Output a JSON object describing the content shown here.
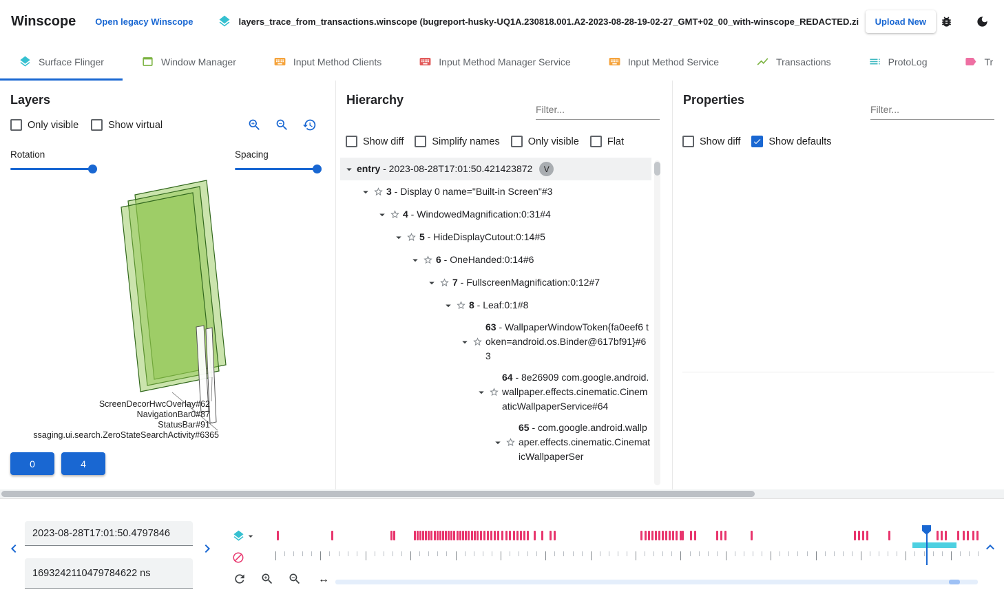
{
  "colors": {
    "accent": "#1967d2",
    "tick_color": "#e8356d",
    "selection_color": "#4dd0e1",
    "teal_icon": "#35c0d0"
  },
  "header": {
    "app_title": "Winscope",
    "legacy_link": "Open legacy Winscope",
    "trace_file": "layers_trace_from_transactions.winscope (bugreport-husky-UQ1A.230818.001.A2-2023-08-28-19-02-27_GMT+02_00_with-winscope_REDACTED.zip)",
    "upload_button": "Upload New"
  },
  "tabs": [
    {
      "label": "Surface Flinger",
      "icon": "layers-icon",
      "glyph": "layers",
      "color": "#35c0d0",
      "active": true
    },
    {
      "label": "Window Manager",
      "icon": "window-icon",
      "glyph": "window",
      "color": "#7cb342",
      "active": false
    },
    {
      "label": "Input Method Clients",
      "icon": "keyboard-icon",
      "glyph": "keyboard",
      "color": "#f5a33b",
      "active": false
    },
    {
      "label": "Input Method Manager Service",
      "icon": "keyboard-icon",
      "glyph": "keyboard",
      "color": "#e25a5a",
      "active": false
    },
    {
      "label": "Input Method Service",
      "icon": "keyboard-icon",
      "glyph": "keyboard",
      "color": "#f5a33b",
      "active": false
    },
    {
      "label": "Transactions",
      "icon": "chart-icon",
      "glyph": "chart",
      "color": "#7cb342",
      "active": false
    },
    {
      "label": "ProtoLog",
      "icon": "list-icon",
      "glyph": "list",
      "color": "#3eb8c0",
      "active": false
    },
    {
      "label": "Tr",
      "icon": "tag-icon",
      "glyph": "tag",
      "color": "#ee6fa2",
      "active": false
    }
  ],
  "layers": {
    "title": "Layers",
    "toggles": [
      {
        "label": "Only visible",
        "checked": false
      },
      {
        "label": "Show virtual",
        "checked": false
      }
    ],
    "rotation_label": "Rotation",
    "spacing_label": "Spacing",
    "labels": [
      "ScreenDecorHwcOverlay#62",
      "NavigationBar0#87",
      "StatusBar#91",
      "ssaging.ui.search.ZeroStateSearchActivity#6365"
    ],
    "display_buttons": [
      "0",
      "4"
    ]
  },
  "hierarchy": {
    "title": "Hierarchy",
    "filter_placeholder": "Filter...",
    "toggles": [
      {
        "label": "Show diff",
        "checked": false
      },
      {
        "label": "Simplify names",
        "checked": false
      },
      {
        "label": "Only visible",
        "checked": false
      },
      {
        "label": "Flat",
        "checked": false
      }
    ],
    "tree": [
      {
        "depth": 0,
        "id": "entry",
        "text": " - 2023-08-28T17:01:50.421423872",
        "star": false,
        "badge": "V",
        "selected": true
      },
      {
        "depth": 1,
        "id": "3",
        "text": " - Display 0 name=\"Built-in Screen\"#3",
        "star": true
      },
      {
        "depth": 2,
        "id": "4",
        "text": " - WindowedMagnification:0:31#4",
        "star": true
      },
      {
        "depth": 3,
        "id": "5",
        "text": " - HideDisplayCutout:0:14#5",
        "star": true
      },
      {
        "depth": 4,
        "id": "6",
        "text": " - OneHanded:0:14#6",
        "star": true
      },
      {
        "depth": 5,
        "id": "7",
        "text": " - FullscreenMagnification:0:12#7",
        "star": true
      },
      {
        "depth": 6,
        "id": "8",
        "text": " - Leaf:0:1#8",
        "star": true
      },
      {
        "depth": 7,
        "id": "63",
        "text": " - WallpaperWindowToken{fa0eef6 token=android.os.Binder@617bf91}#63",
        "star": true
      },
      {
        "depth": 8,
        "id": "64",
        "text": " - 8e26909 com.google.android.wallpaper.effects.cinematic.CinematicWallpaperService#64",
        "star": true
      },
      {
        "depth": 9,
        "id": "65",
        "text": " - com.google.android.wallpaper.effects.cinematic.CinematicWallpaperSer",
        "star": true
      }
    ]
  },
  "properties": {
    "title": "Properties",
    "filter_placeholder": "Filter...",
    "toggles": [
      {
        "label": "Show diff",
        "checked": false
      },
      {
        "label": "Show defaults",
        "checked": true
      }
    ]
  },
  "timeline": {
    "ts_human": "2023-08-28T17:01:50.4797846",
    "ts_ns": "1693242110479784622 ns",
    "cursor_pct": 92.6,
    "selection": {
      "start_pct": 90.7,
      "width_pct": 6.3
    },
    "zoom_thumb_pct": 95.5,
    "ticks": [
      0.2,
      7.9,
      16.4,
      16.8,
      19.7,
      20.1,
      20.5,
      20.9,
      21.3,
      21.7,
      22.1,
      22.5,
      22.9,
      23.3,
      23.7,
      24.1,
      24.5,
      24.9,
      25.3,
      25.8,
      26.2,
      26.6,
      27.0,
      27.4,
      27.8,
      28.2,
      28.6,
      29.1,
      29.6,
      30.1,
      30.6,
      31.1,
      31.6,
      32.2,
      32.7,
      33.2,
      33.8,
      34.3,
      34.8,
      35.3,
      35.8,
      36.8,
      37.8,
      39.0,
      39.6,
      52.0,
      52.5,
      53.0,
      53.5,
      54.0,
      54.5,
      55.0,
      55.5,
      56.0,
      56.5,
      57.0,
      57.5,
      57.8,
      59.0,
      59.6,
      62.7,
      63.3,
      63.9,
      67.6,
      82.4,
      82.9,
      83.5,
      84.1,
      87.3,
      94.1,
      94.7,
      95.3,
      97.1,
      97.8,
      98.4,
      99.2,
      99.8
    ]
  }
}
